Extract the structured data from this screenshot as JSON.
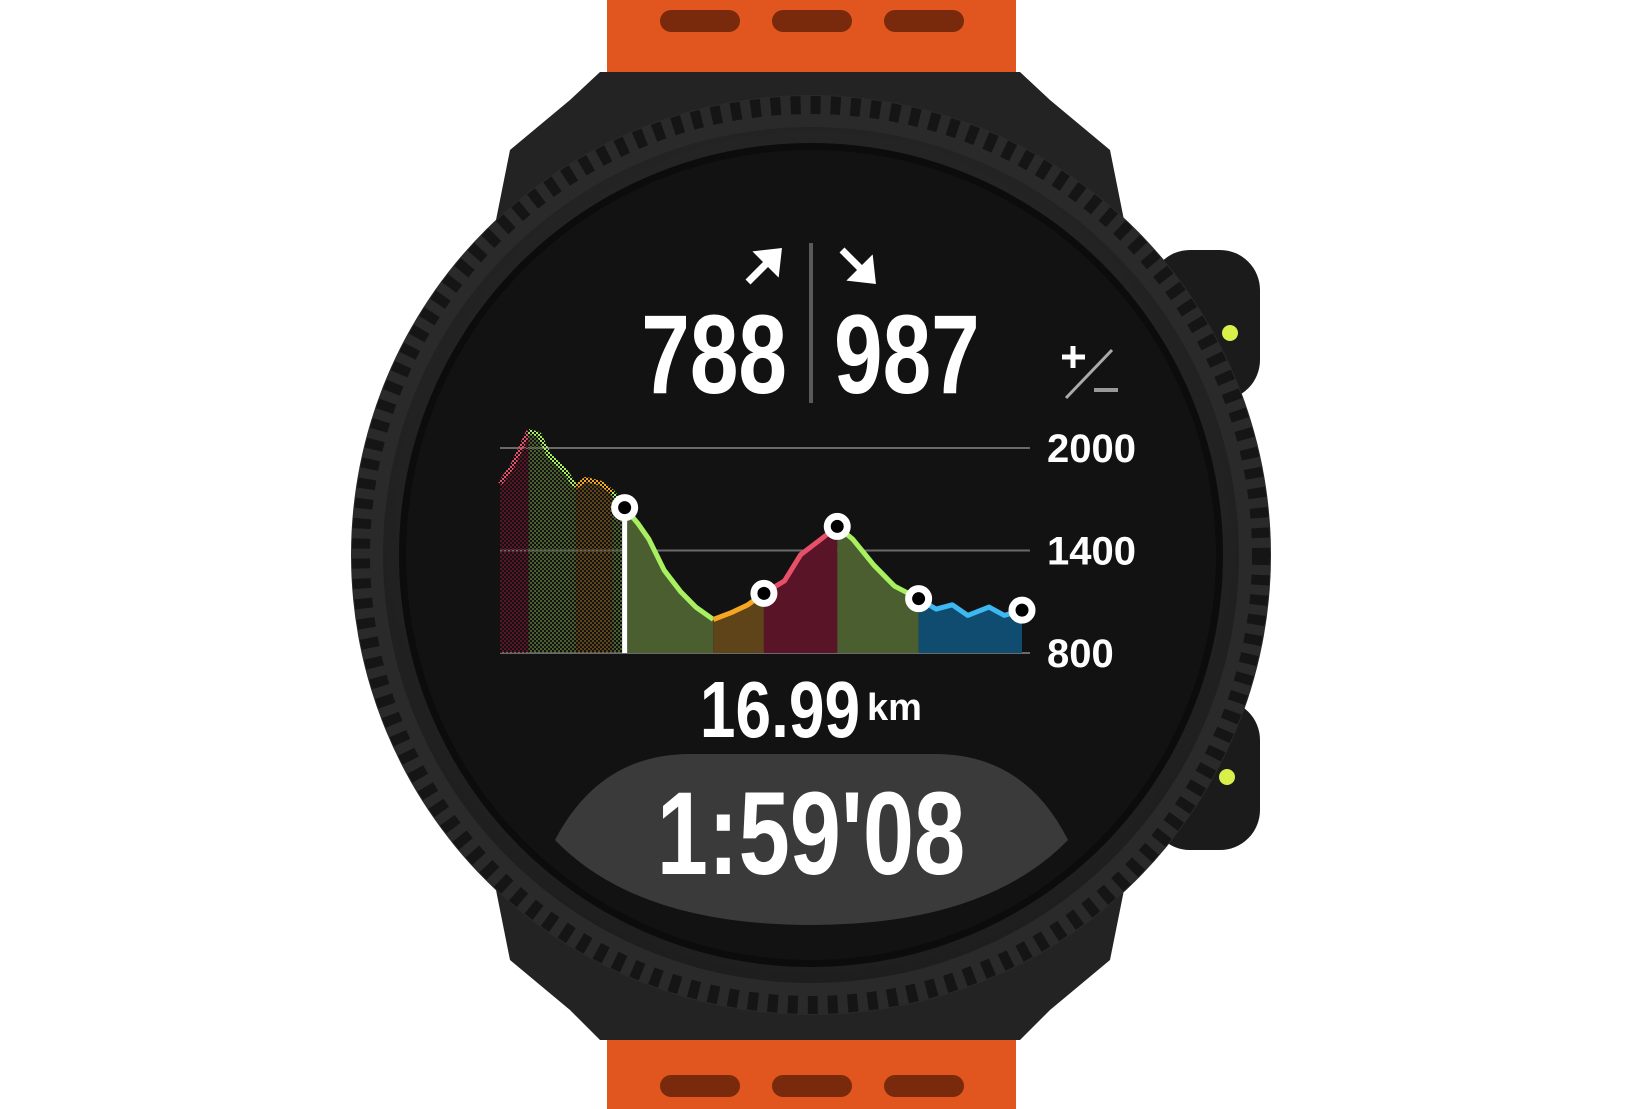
{
  "watch": {
    "strap_color": "#e0561e",
    "case_color": "#232323",
    "button_dot_color": "#d9f04a"
  },
  "ascent": {
    "value": "788",
    "icon": "arrow-up-right-icon"
  },
  "descent": {
    "value": "987",
    "icon": "arrow-down-right-icon"
  },
  "toggle_icon": "plus-minus-icon",
  "distance": {
    "value": "16.99",
    "unit": "km"
  },
  "duration": "1:59'08",
  "chart_data": {
    "type": "area",
    "xlabel": "",
    "ylabel": "",
    "y_ticks": [
      "2000",
      "1400",
      "800"
    ],
    "y_tick_values": [
      2000,
      1400,
      800
    ],
    "ylim": [
      800,
      2000
    ],
    "x_unit": "km",
    "current_distance_km": 16.99,
    "grid": true,
    "points": [
      [
        0,
        1792
      ],
      [
        1.7,
        1896
      ],
      [
        3.9,
        2098
      ],
      [
        5.3,
        2080
      ],
      [
        6.7,
        1957
      ],
      [
        8.9,
        1865
      ],
      [
        10.3,
        1773
      ],
      [
        11.7,
        1816
      ],
      [
        13.9,
        1792
      ],
      [
        15.3,
        1743
      ],
      [
        17.0,
        1651
      ],
      [
        18.8,
        1559
      ],
      [
        20.3,
        1467
      ],
      [
        22.4,
        1284
      ],
      [
        24.6,
        1161
      ],
      [
        26.7,
        1069
      ],
      [
        29.1,
        996
      ],
      [
        31.7,
        1039
      ],
      [
        33.8,
        1082
      ],
      [
        36.0,
        1149
      ],
      [
        38.8,
        1222
      ],
      [
        41.0,
        1375
      ],
      [
        43.8,
        1467
      ],
      [
        46.0,
        1541
      ],
      [
        48.1,
        1467
      ],
      [
        51.0,
        1314
      ],
      [
        53.8,
        1192
      ],
      [
        57.1,
        1118
      ],
      [
        59.5,
        1057
      ],
      [
        61.7,
        1082
      ],
      [
        63.8,
        1020
      ],
      [
        66.7,
        1069
      ],
      [
        68.8,
        1020
      ],
      [
        71.2,
        1051
      ]
    ],
    "waypoints": [
      10,
      19,
      23,
      27,
      33
    ],
    "segments": [
      {
        "from": 0,
        "to": 2,
        "color": "#e8506a",
        "fill": "#5a1428"
      },
      {
        "from": 2,
        "to": 6,
        "color": "#a8f060",
        "fill": "#4a5e30"
      },
      {
        "from": 6,
        "to": 9,
        "color": "#f5a623",
        "fill": "#5e4418"
      },
      {
        "from": 9,
        "to": 10,
        "color": "#a8f060",
        "fill": "#4a5e30"
      },
      {
        "from": 10,
        "to": 16,
        "color": "#a8f060",
        "fill": "#4a5e30"
      },
      {
        "from": 16,
        "to": 19,
        "color": "#f5a623",
        "fill": "#5e4418"
      },
      {
        "from": 19,
        "to": 23,
        "color": "#e8506a",
        "fill": "#5a1428"
      },
      {
        "from": 23,
        "to": 27,
        "color": "#a8f060",
        "fill": "#4a5e30"
      },
      {
        "from": 27,
        "to": 33,
        "color": "#3db8f0",
        "fill": "#0f4c70"
      }
    ]
  }
}
